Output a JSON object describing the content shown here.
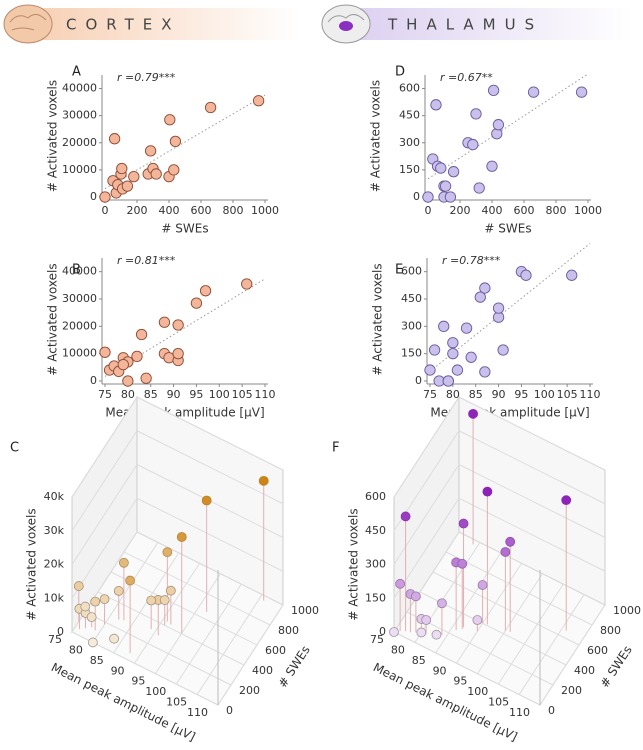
{
  "headers": [
    "CORTEX",
    "THALAMUS"
  ],
  "chart_data": [
    {
      "type": "scatter",
      "panel": "A",
      "annotation": "r =0.79***",
      "color": "#f4b69a",
      "edge": "#8a4b33",
      "note_color": "#a0522d",
      "x_label": "# SWEs",
      "y_label": "# Activated voxels",
      "x": [
        0,
        50,
        60,
        70,
        80,
        100,
        105,
        110,
        140,
        180,
        270,
        285,
        300,
        320,
        400,
        405,
        430,
        440,
        660,
        960
      ],
      "y": [
        0,
        6000,
        21500,
        1500,
        4500,
        8500,
        10500,
        3000,
        4000,
        7500,
        8500,
        17000,
        10500,
        8500,
        7500,
        28500,
        10000,
        20500,
        33000,
        35500
      ],
      "xlim": [
        0,
        1000
      ],
      "xticks": [
        0,
        200,
        400,
        600,
        800,
        1000
      ],
      "ylim": [
        0,
        45000
      ],
      "yticks": [
        0,
        10000,
        20000,
        30000,
        40000
      ],
      "trendline": true
    },
    {
      "type": "scatter",
      "panel": "B",
      "annotation": "r =0.81***",
      "color": "#f4b69a",
      "edge": "#8a4b33",
      "note_color": "#a0522d",
      "x_label": "Mean peak amplitude [µV]",
      "y_label": "# Activated voxels",
      "x": [
        75,
        76,
        77,
        78,
        79,
        80,
        80,
        82,
        83,
        84,
        88,
        88,
        89,
        91,
        91,
        91,
        95,
        97,
        106,
        79
      ],
      "y": [
        10500,
        4000,
        5500,
        3500,
        8500,
        7000,
        0,
        9000,
        17000,
        1000,
        10000,
        21500,
        8500,
        20500,
        7500,
        10000,
        28500,
        33000,
        35500,
        6000
      ],
      "xlim": [
        75,
        110
      ],
      "xticks": [
        75,
        80,
        85,
        90,
        95,
        100,
        105,
        110
      ],
      "ylim": [
        0,
        45000
      ],
      "yticks": [
        0,
        10000,
        20000,
        30000,
        40000
      ],
      "trendline": true
    },
    {
      "type": "scatter3d",
      "panel": "C",
      "color": "#c87800",
      "x_label": "# SWEs",
      "y_label": "Mean peak amplitude [µV]",
      "z_label": "# Activated voxels",
      "x": [
        0,
        50,
        60,
        70,
        80,
        100,
        105,
        110,
        140,
        180,
        270,
        285,
        300,
        320,
        400,
        405,
        430,
        440,
        660,
        960
      ],
      "y": [
        80,
        76,
        88,
        84,
        77,
        79,
        75,
        78,
        76,
        80,
        82,
        83,
        91,
        89,
        91,
        95,
        92,
        91,
        97,
        106
      ],
      "z": [
        0,
        6000,
        21500,
        1500,
        4500,
        8500,
        10500,
        3000,
        4000,
        7500,
        8500,
        17000,
        10500,
        8500,
        7500,
        28500,
        10000,
        20500,
        33000,
        35500
      ],
      "xlim": [
        0,
        1000
      ],
      "xticks": [
        0,
        200,
        400,
        600,
        800,
        1000
      ],
      "ylim": [
        75,
        110
      ],
      "yticks": [
        75,
        80,
        85,
        90,
        95,
        100,
        105,
        110
      ],
      "zlim": [
        0,
        40000
      ],
      "zticks": [
        0,
        {
          "value": 10000,
          "label": "10k"
        },
        {
          "value": 20000,
          "label": "20k"
        },
        {
          "value": 30000,
          "label": "30k"
        },
        {
          "value": 40000,
          "label": "40k"
        }
      ]
    },
    {
      "type": "scatter",
      "panel": "D",
      "annotation": "r =0.67**",
      "color": "#c9c0ec",
      "edge": "#6a5a9c",
      "note_color": "#7b3fa0",
      "x_label": "# SWEs",
      "y_label": "# Activated voxels",
      "x": [
        0,
        30,
        50,
        60,
        80,
        100,
        100,
        110,
        140,
        160,
        250,
        280,
        300,
        320,
        400,
        410,
        430,
        440,
        660,
        960
      ],
      "y": [
        0,
        210,
        510,
        170,
        160,
        60,
        0,
        60,
        0,
        140,
        300,
        290,
        460,
        50,
        170,
        590,
        350,
        400,
        580,
        580
      ],
      "xlim": [
        0,
        1000
      ],
      "xticks": [
        0,
        200,
        400,
        600,
        800,
        1000
      ],
      "ylim": [
        0,
        675
      ],
      "yticks": [
        0,
        150,
        300,
        450,
        600
      ],
      "trendline": true
    },
    {
      "type": "scatter",
      "panel": "E",
      "annotation": "r =0.78***",
      "color": "#c9c0ec",
      "edge": "#6a5a9c",
      "note_color": "#7b3fa0",
      "x_label": "Mean peak amplitude [µV]",
      "y_label": "# Activated voxels",
      "x": [
        75,
        76,
        77,
        78,
        79,
        80,
        80,
        81,
        83,
        84,
        86,
        87,
        87,
        90,
        90,
        91,
        95,
        96,
        106,
        79
      ],
      "y": [
        60,
        170,
        0,
        300,
        0,
        150,
        210,
        60,
        290,
        130,
        460,
        510,
        50,
        350,
        400,
        170,
        600,
        580,
        580,
        0
      ],
      "xlim": [
        75,
        110
      ],
      "xticks": [
        75,
        80,
        85,
        90,
        95,
        100,
        105,
        110
      ],
      "ylim": [
        0,
        675
      ],
      "yticks": [
        0,
        150,
        300,
        450,
        600
      ],
      "trendline": true
    },
    {
      "type": "scatter3d",
      "panel": "F",
      "color": "#8a1fb8",
      "x_label": "# SWEs",
      "y_label": "Mean peak amplitude [µV]",
      "z_label": "# Activated voxels",
      "x": [
        0,
        30,
        50,
        60,
        80,
        100,
        100,
        110,
        140,
        160,
        250,
        280,
        300,
        320,
        400,
        410,
        430,
        440,
        660,
        960
      ],
      "y": [
        75,
        76,
        77,
        78,
        79,
        80,
        80,
        81,
        83,
        84,
        86,
        87,
        87,
        90,
        90,
        91,
        95,
        96,
        106,
        79
      ],
      "z": [
        0,
        210,
        510,
        170,
        160,
        60,
        0,
        60,
        0,
        140,
        300,
        290,
        460,
        50,
        170,
        590,
        350,
        400,
        580,
        580
      ],
      "xlim": [
        0,
        1000
      ],
      "xticks": [
        0,
        200,
        400,
        600,
        800,
        1000
      ],
      "ylim": [
        75,
        110
      ],
      "yticks": [
        75,
        80,
        85,
        90,
        95,
        100,
        105,
        110
      ],
      "zlim": [
        0,
        600
      ],
      "zticks": [
        0,
        150,
        300,
        450,
        600
      ]
    }
  ]
}
